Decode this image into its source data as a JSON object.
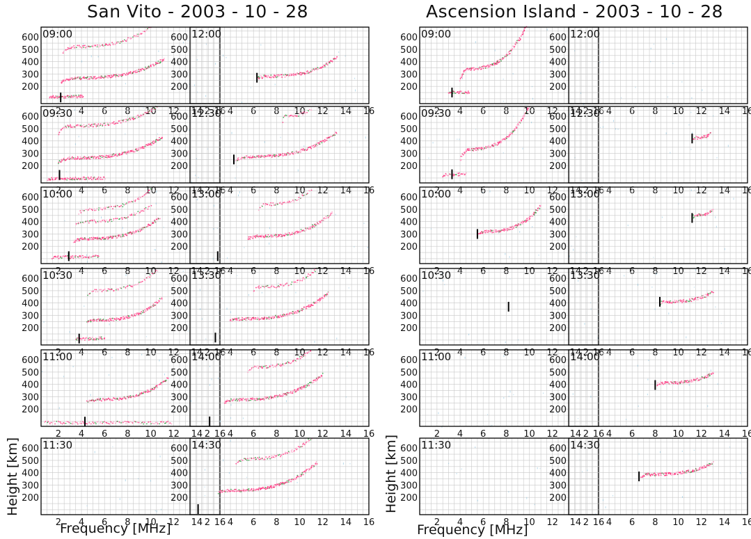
{
  "figure": {
    "left_title": "San Vito - 2003 - 10 - 28",
    "right_title": "Ascension Island - 2003 - 10 - 28",
    "xlabel": "Frequency [MHz]",
    "ylabel": "Height [km]"
  },
  "colors": {
    "ordinary_trace": "#ff2d7a",
    "ordinary_trace_light": "#ff9ec4",
    "extraordinary_trace": "#2e9e3e",
    "noise": "#6fb6d8",
    "marker": "#000000",
    "grid": "#c8c8c8",
    "frame": "#000000"
  },
  "chart_data": {
    "type": "scatter",
    "description_axes": {
      "x_ticks": [
        2,
        4,
        6,
        8,
        10,
        12,
        14,
        16
      ],
      "y_ticks": [
        200,
        300,
        400,
        500,
        600
      ],
      "xlim": [
        0.5,
        16
      ],
      "ylim": [
        60,
        680
      ],
      "grid": true
    },
    "panels": [
      {
        "station": "San Vito",
        "time": "09:00",
        "traces": [
          {
            "f0": 2.2,
            "f1": 11.2,
            "h0": 228,
            "h1": 420,
            "cusp": 265,
            "density": 1.0
          },
          {
            "f0": 2.4,
            "f1": 10.0,
            "h0": 470,
            "h1": 680,
            "cusp": 520,
            "density": 0.5
          },
          {
            "f0": 1.2,
            "f1": 4.2,
            "h0": 110,
            "h1": 120,
            "cusp": 115,
            "density": 0.7
          }
        ],
        "marker": {
          "f": 2.2,
          "h": 110
        }
      },
      {
        "station": "San Vito",
        "time": "09:30",
        "traces": [
          {
            "f0": 2.0,
            "f1": 11.0,
            "h0": 225,
            "h1": 430,
            "cusp": 260,
            "density": 1.0
          },
          {
            "f0": 2.0,
            "f1": 10.6,
            "h0": 460,
            "h1": 680,
            "cusp": 520,
            "density": 0.7
          },
          {
            "f0": 1.0,
            "f1": 6.0,
            "h0": 90,
            "h1": 100,
            "cusp": 95,
            "density": 0.7
          }
        ],
        "marker": {
          "f": 2.1,
          "h": 125
        }
      },
      {
        "station": "San Vito",
        "time": "10:00",
        "traces": [
          {
            "f0": 3.3,
            "f1": 10.8,
            "h0": 235,
            "h1": 430,
            "cusp": 260,
            "density": 1.0
          },
          {
            "f0": 3.5,
            "f1": 10.0,
            "h0": 370,
            "h1": 530,
            "cusp": 400,
            "density": 0.4
          },
          {
            "f0": 3.8,
            "f1": 10.0,
            "h0": 470,
            "h1": 660,
            "cusp": 500,
            "density": 0.4
          },
          {
            "f0": 1.5,
            "f1": 5.5,
            "h0": 108,
            "h1": 118,
            "cusp": 112,
            "density": 0.6
          }
        ],
        "marker": {
          "f": 2.9,
          "h": 120
        }
      },
      {
        "station": "San Vito",
        "time": "10:30",
        "traces": [
          {
            "f0": 4.5,
            "f1": 11.0,
            "h0": 240,
            "h1": 440,
            "cusp": 260,
            "density": 0.9
          },
          {
            "f0": 4.5,
            "f1": 10.6,
            "h0": 460,
            "h1": 670,
            "cusp": 500,
            "density": 0.4
          },
          {
            "f0": 3.5,
            "f1": 6.0,
            "h0": 108,
            "h1": 116,
            "cusp": 110,
            "density": 0.5
          }
        ],
        "marker": {
          "f": 3.8,
          "h": 112
        }
      },
      {
        "station": "San Vito",
        "time": "11:00",
        "traces": [
          {
            "f0": 4.5,
            "f1": 11.5,
            "h0": 255,
            "h1": 450,
            "cusp": 275,
            "density": 0.9
          },
          {
            "f0": 0.8,
            "f1": 11.8,
            "h0": 90,
            "h1": 90,
            "cusp": 90,
            "density": 0.4
          }
        ],
        "marker": {
          "f": 4.3,
          "h": 98
        }
      },
      {
        "station": "San Vito",
        "time": "11:30",
        "traces": [],
        "marker": null
      },
      {
        "station": "San Vito",
        "time": "12:00",
        "traces": [
          {
            "f0": 6.3,
            "f1": 13.2,
            "h0": 265,
            "h1": 430,
            "cusp": 280,
            "density": 0.8
          }
        ],
        "marker": {
          "f": 6.3,
          "h": 270
        }
      },
      {
        "station": "San Vito",
        "time": "12:30",
        "traces": [
          {
            "f0": 4.5,
            "f1": 13.2,
            "h0": 245,
            "h1": 470,
            "cusp": 270,
            "density": 0.9
          },
          {
            "f0": 8.5,
            "f1": 11.0,
            "h0": 560,
            "h1": 660,
            "cusp": 600,
            "density": 0.3
          }
        ],
        "marker": {
          "f": 4.3,
          "h": 250
        }
      },
      {
        "station": "San Vito",
        "time": "13:00",
        "traces": [
          {
            "f0": 5.5,
            "f1": 12.8,
            "h0": 262,
            "h1": 470,
            "cusp": 280,
            "density": 0.9
          },
          {
            "f0": 6.5,
            "f1": 11.0,
            "h0": 500,
            "h1": 660,
            "cusp": 540,
            "density": 0.35
          }
        ],
        "marker": {
          "f": 2.9,
          "h": 120
        }
      },
      {
        "station": "San Vito",
        "time": "13:30",
        "traces": [
          {
            "f0": 4.0,
            "f1": 12.5,
            "h0": 255,
            "h1": 480,
            "cusp": 270,
            "density": 1.0
          },
          {
            "f0": 6.0,
            "f1": 11.5,
            "h0": 500,
            "h1": 680,
            "cusp": 530,
            "density": 0.4
          }
        ],
        "marker": {
          "f": 2.7,
          "h": 120
        }
      },
      {
        "station": "San Vito",
        "time": "14:00",
        "traces": [
          {
            "f0": 3.5,
            "f1": 12.0,
            "h0": 255,
            "h1": 480,
            "cusp": 275,
            "density": 1.0
          },
          {
            "f0": 5.5,
            "f1": 11.0,
            "h0": 500,
            "h1": 680,
            "cusp": 540,
            "density": 0.5
          }
        ],
        "marker": {
          "f": 2.2,
          "h": 100
        }
      },
      {
        "station": "San Vito",
        "time": "14:30",
        "traces": [
          {
            "f0": 3.0,
            "f1": 11.5,
            "h0": 240,
            "h1": 480,
            "cusp": 255,
            "density": 1.0
          },
          {
            "f0": 4.5,
            "f1": 11.0,
            "h0": 470,
            "h1": 680,
            "cusp": 510,
            "density": 0.5
          }
        ],
        "marker": {
          "f": 1.2,
          "h": 105
        }
      },
      {
        "station": "Ascension Island",
        "time": "09:00",
        "traces": [
          {
            "f0": 4.0,
            "f1": 9.7,
            "h0": 250,
            "h1": 680,
            "cusp": 340,
            "density": 1.0
          },
          {
            "f0": 3.0,
            "f1": 4.8,
            "h0": 150,
            "h1": 150,
            "cusp": 150,
            "density": 0.4
          }
        ],
        "marker": {
          "f": 3.3,
          "h": 150
        }
      },
      {
        "station": "Ascension Island",
        "time": "09:30",
        "traces": [
          {
            "f0": 4.0,
            "f1": 10.0,
            "h0": 240,
            "h1": 680,
            "cusp": 330,
            "density": 1.0
          },
          {
            "f0": 2.5,
            "f1": 4.5,
            "h0": 120,
            "h1": 140,
            "cusp": 125,
            "density": 0.4
          }
        ],
        "marker": {
          "f": 3.3,
          "h": 130
        }
      },
      {
        "station": "Ascension Island",
        "time": "10:00",
        "traces": [
          {
            "f0": 5.5,
            "f1": 11.0,
            "h0": 290,
            "h1": 530,
            "cusp": 320,
            "density": 0.9
          }
        ],
        "marker": {
          "f": 5.5,
          "h": 300
        }
      },
      {
        "station": "Ascension Island",
        "time": "10:30",
        "traces": [],
        "marker": {
          "f": 8.2,
          "h": 370
        }
      },
      {
        "station": "Ascension Island",
        "time": "11:00",
        "traces": [],
        "marker": null
      },
      {
        "station": "Ascension Island",
        "time": "11:30",
        "traces": [],
        "marker": null
      },
      {
        "station": "Ascension Island",
        "time": "12:00",
        "traces": [],
        "marker": null
      },
      {
        "station": "Ascension Island",
        "time": "12:30",
        "traces": [
          {
            "f0": 11.3,
            "f1": 12.8,
            "h0": 420,
            "h1": 460,
            "cusp": 425,
            "density": 0.5
          }
        ],
        "marker": {
          "f": 11.2,
          "h": 420
        }
      },
      {
        "station": "Ascension Island",
        "time": "13:00",
        "traces": [
          {
            "f0": 11.3,
            "f1": 13.0,
            "h0": 440,
            "h1": 500,
            "cusp": 450,
            "density": 0.5
          }
        ],
        "marker": {
          "f": 11.2,
          "h": 430
        }
      },
      {
        "station": "Ascension Island",
        "time": "13:30",
        "traces": [
          {
            "f0": 8.5,
            "f1": 13.0,
            "h0": 400,
            "h1": 490,
            "cusp": 410,
            "density": 0.8
          }
        ],
        "marker": {
          "f": 8.4,
          "h": 410
        }
      },
      {
        "station": "Ascension Island",
        "time": "14:00",
        "traces": [
          {
            "f0": 8.2,
            "f1": 13.0,
            "h0": 400,
            "h1": 490,
            "cusp": 410,
            "density": 0.9
          }
        ],
        "marker": {
          "f": 8.0,
          "h": 395
        }
      },
      {
        "station": "Ascension Island",
        "time": "14:30",
        "traces": [
          {
            "f0": 6.8,
            "f1": 13.0,
            "h0": 370,
            "h1": 480,
            "cusp": 385,
            "density": 0.9
          }
        ],
        "marker": {
          "f": 6.6,
          "h": 370
        }
      }
    ]
  }
}
